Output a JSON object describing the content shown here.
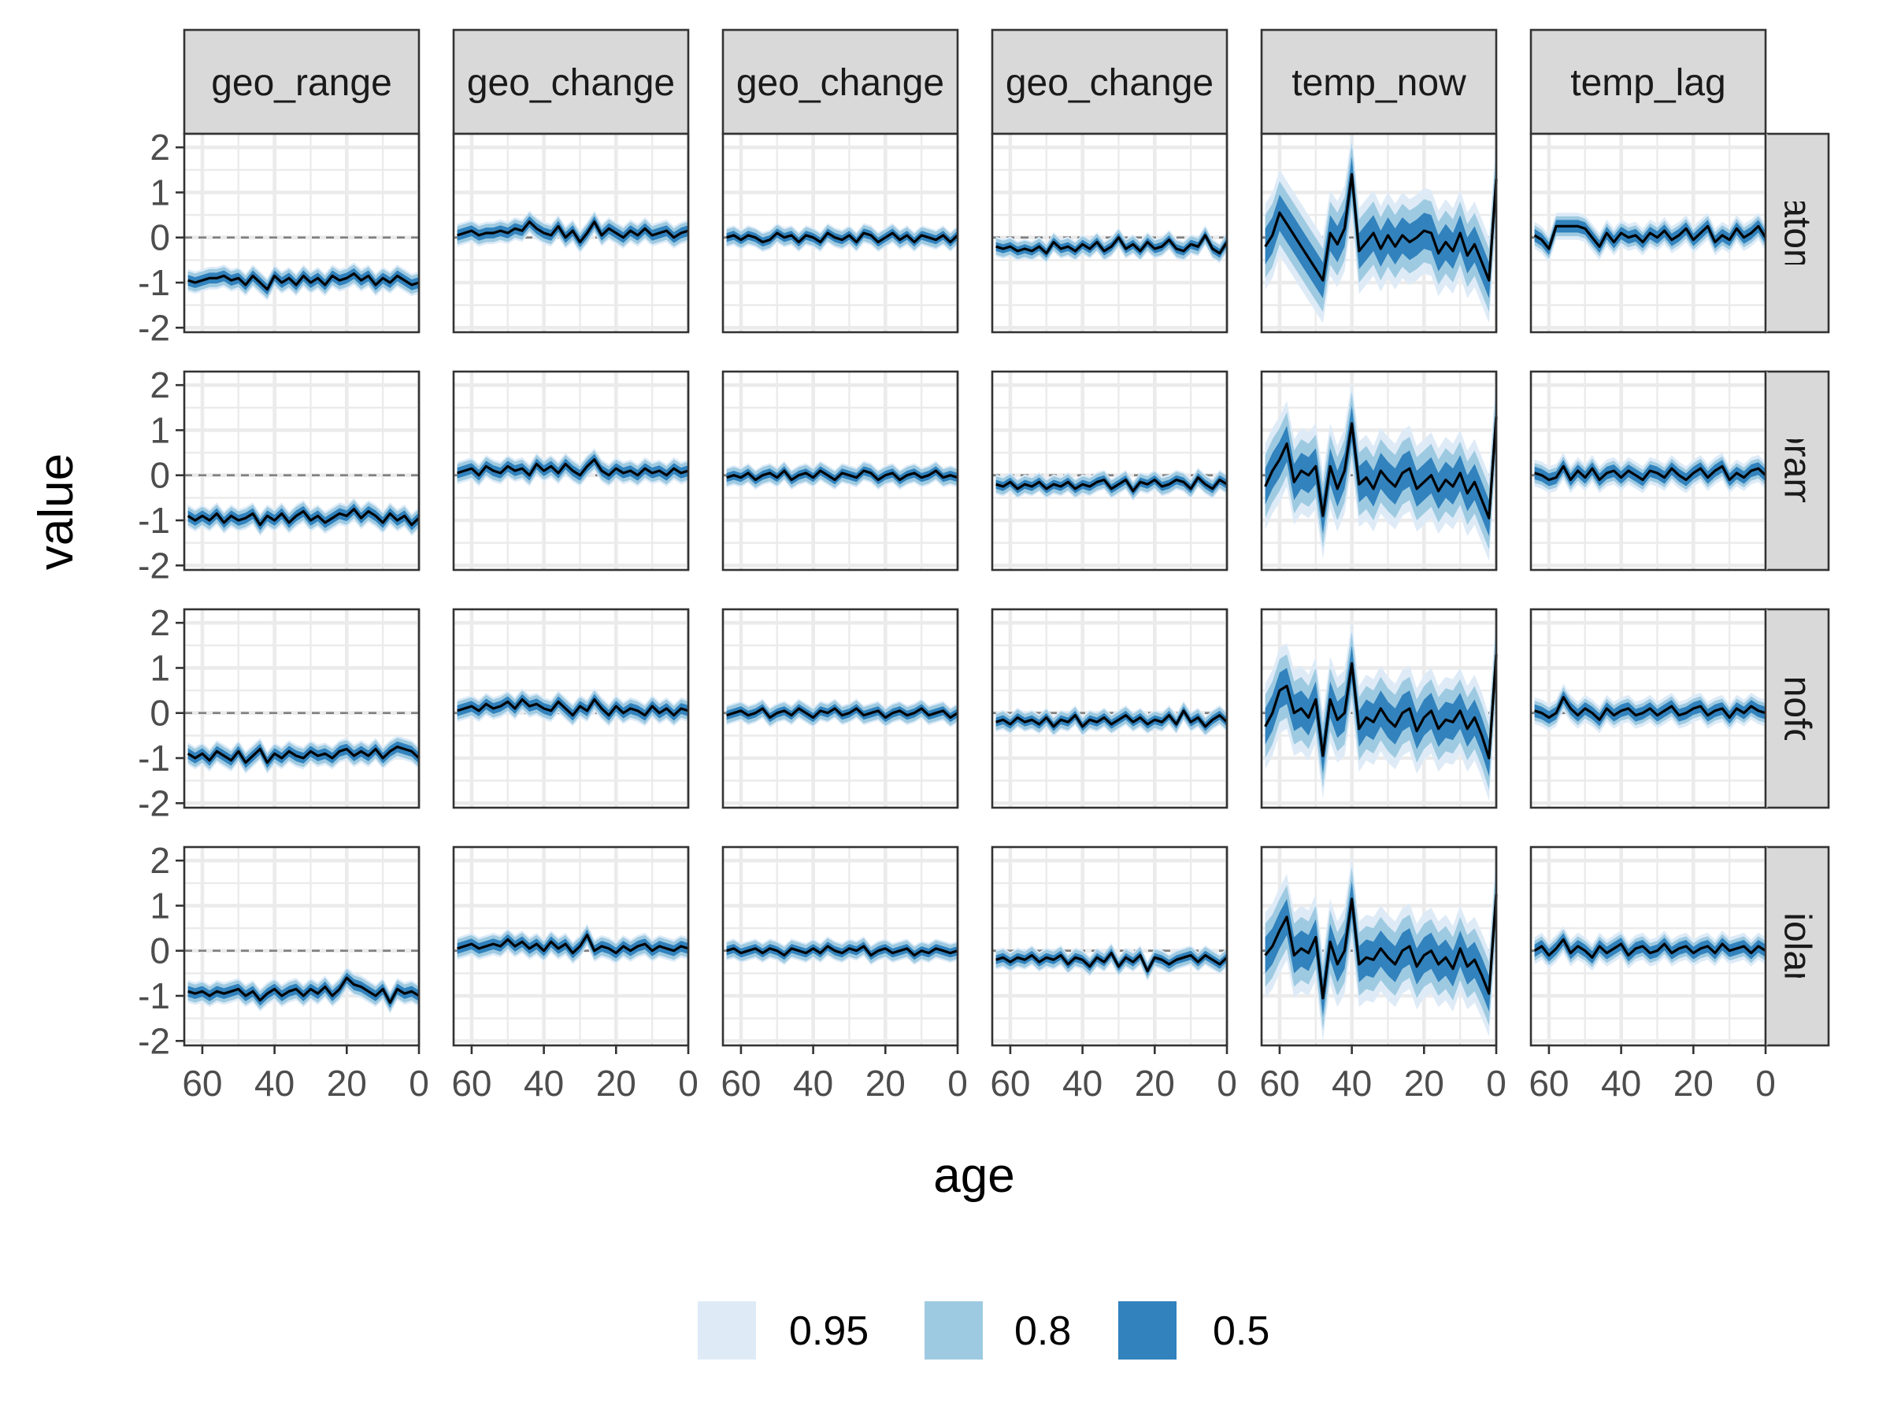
{
  "chart_data": {
    "type": "area",
    "facet_columns": [
      "geo_range",
      "geo_change",
      "geo_change",
      "geo_change",
      "temp_now",
      "temp_lag"
    ],
    "facet_rows": [
      "diatoms",
      "forams",
      "nannofossil",
      "radiolarian"
    ],
    "xlabel": "age",
    "ylabel": "value",
    "x_reversed": true,
    "xlim": [
      65,
      0
    ],
    "ylim": [
      -2.1,
      2.3
    ],
    "x_ticks": [
      60,
      40,
      20,
      0
    ],
    "y_ticks": [
      2,
      1,
      0,
      -1,
      -2
    ],
    "grid": true,
    "zero_reference_line": "dashed",
    "x": [
      64,
      62,
      60,
      58,
      56,
      54,
      52,
      50,
      48,
      46,
      44,
      42,
      40,
      38,
      36,
      34,
      32,
      30,
      28,
      26,
      24,
      22,
      20,
      18,
      16,
      14,
      12,
      10,
      8,
      6,
      4,
      2,
      0
    ],
    "legend": {
      "position": "bottom",
      "entries": [
        {
          "label": "0.95",
          "color": "#deebf7"
        },
        {
          "label": "0.8",
          "color": "#9ecae1"
        },
        {
          "label": "0.5",
          "color": "#3182bd"
        }
      ]
    },
    "line_color": "#000000",
    "panels": [
      {
        "row": 0,
        "col": 0,
        "width": [
          0.25,
          0.2,
          0.12
        ],
        "mean": [
          -0.95,
          -1.0,
          -0.95,
          -0.9,
          -0.9,
          -0.85,
          -0.95,
          -0.9,
          -1.05,
          -0.85,
          -1.0,
          -1.15,
          -0.85,
          -1.0,
          -0.9,
          -1.05,
          -0.85,
          -1.0,
          -0.9,
          -1.05,
          -0.85,
          -0.95,
          -0.9,
          -0.8,
          -0.95,
          -0.85,
          -1.05,
          -0.9,
          -1.0,
          -0.85,
          -0.95,
          -1.05,
          -1.0
        ]
      },
      {
        "row": 0,
        "col": 1,
        "width": [
          0.25,
          0.2,
          0.12
        ],
        "mean": [
          0.05,
          0.1,
          0.15,
          0.05,
          0.1,
          0.1,
          0.15,
          0.1,
          0.2,
          0.15,
          0.35,
          0.2,
          0.1,
          0.05,
          0.25,
          0.0,
          0.15,
          -0.1,
          0.1,
          0.35,
          0.05,
          0.2,
          0.1,
          0.0,
          0.15,
          0.05,
          0.2,
          0.05,
          0.1,
          0.15,
          0.0,
          0.1,
          0.15
        ]
      },
      {
        "row": 0,
        "col": 2,
        "width": [
          0.22,
          0.18,
          0.1
        ],
        "mean": [
          0.0,
          0.05,
          -0.05,
          0.05,
          0.0,
          -0.1,
          -0.05,
          0.1,
          0.0,
          0.05,
          -0.1,
          0.05,
          0.0,
          -0.1,
          0.1,
          0.0,
          -0.05,
          0.05,
          -0.1,
          0.1,
          0.05,
          -0.1,
          0.0,
          0.1,
          -0.05,
          0.05,
          -0.1,
          0.05,
          0.0,
          -0.05,
          0.05,
          -0.1,
          0.05
        ]
      },
      {
        "row": 0,
        "col": 3,
        "width": [
          0.22,
          0.18,
          0.1
        ],
        "mean": [
          -0.2,
          -0.25,
          -0.2,
          -0.3,
          -0.25,
          -0.3,
          -0.2,
          -0.35,
          -0.1,
          -0.25,
          -0.2,
          -0.3,
          -0.15,
          -0.25,
          -0.1,
          -0.3,
          -0.2,
          0.0,
          -0.25,
          -0.15,
          -0.3,
          -0.1,
          -0.25,
          -0.2,
          -0.05,
          -0.25,
          -0.3,
          -0.15,
          -0.2,
          0.05,
          -0.25,
          -0.35,
          -0.1
        ]
      },
      {
        "row": 0,
        "col": 4,
        "width": [
          0.95,
          0.7,
          0.4
        ],
        "mean": [
          -0.2,
          0.05,
          0.55,
          0.3,
          0.05,
          -0.2,
          -0.45,
          -0.7,
          -0.95,
          0.1,
          -0.15,
          0.2,
          1.4,
          -0.3,
          -0.1,
          0.1,
          -0.25,
          0.05,
          -0.2,
          0.05,
          -0.1,
          0.0,
          0.15,
          0.1,
          -0.35,
          -0.1,
          -0.3,
          0.1,
          -0.4,
          -0.15,
          -0.55,
          -0.95,
          1.3
        ]
      },
      {
        "row": 0,
        "col": 5,
        "width": [
          0.3,
          0.22,
          0.14
        ],
        "mean": [
          0.05,
          -0.05,
          -0.25,
          0.25,
          0.25,
          0.25,
          0.25,
          0.2,
          0.0,
          -0.2,
          0.1,
          -0.1,
          0.1,
          0.0,
          0.05,
          -0.1,
          0.1,
          0.0,
          0.15,
          -0.05,
          0.05,
          0.2,
          -0.05,
          0.1,
          0.25,
          -0.1,
          0.05,
          -0.05,
          0.2,
          0.0,
          0.1,
          0.25,
          0.0
        ]
      },
      {
        "row": 1,
        "col": 0,
        "width": [
          0.25,
          0.2,
          0.12
        ],
        "mean": [
          -0.9,
          -1.0,
          -0.9,
          -1.0,
          -0.85,
          -1.05,
          -0.9,
          -1.0,
          -0.95,
          -0.85,
          -1.1,
          -0.9,
          -1.0,
          -0.85,
          -1.05,
          -0.9,
          -0.8,
          -1.0,
          -0.9,
          -1.05,
          -0.95,
          -0.85,
          -0.9,
          -0.75,
          -0.95,
          -0.8,
          -0.9,
          -1.05,
          -0.85,
          -1.0,
          -0.9,
          -1.1,
          -0.95
        ]
      },
      {
        "row": 1,
        "col": 1,
        "width": [
          0.25,
          0.2,
          0.12
        ],
        "mean": [
          0.05,
          0.1,
          0.15,
          0.0,
          0.2,
          0.1,
          0.05,
          0.2,
          0.1,
          0.15,
          0.0,
          0.25,
          0.1,
          0.2,
          0.05,
          0.25,
          0.1,
          0.0,
          0.2,
          0.35,
          0.1,
          0.0,
          0.15,
          0.05,
          0.1,
          0.0,
          0.15,
          0.05,
          0.1,
          0.0,
          0.15,
          0.05,
          0.1
        ]
      },
      {
        "row": 1,
        "col": 2,
        "width": [
          0.22,
          0.18,
          0.1
        ],
        "mean": [
          -0.05,
          0.0,
          -0.05,
          0.05,
          -0.1,
          0.0,
          0.05,
          -0.05,
          0.1,
          -0.1,
          0.0,
          0.05,
          -0.05,
          0.1,
          0.0,
          -0.1,
          0.05,
          0.0,
          -0.05,
          0.1,
          0.05,
          -0.1,
          0.0,
          0.05,
          -0.1,
          0.0,
          0.05,
          -0.05,
          0.0,
          0.1,
          -0.05,
          0.0,
          -0.05
        ]
      },
      {
        "row": 1,
        "col": 3,
        "width": [
          0.22,
          0.18,
          0.1
        ],
        "mean": [
          -0.2,
          -0.25,
          -0.15,
          -0.3,
          -0.2,
          -0.25,
          -0.15,
          -0.3,
          -0.2,
          -0.25,
          -0.15,
          -0.3,
          -0.2,
          -0.25,
          -0.15,
          -0.1,
          -0.3,
          -0.2,
          -0.1,
          -0.35,
          -0.15,
          -0.2,
          -0.1,
          -0.25,
          -0.2,
          -0.1,
          -0.15,
          -0.3,
          -0.05,
          -0.2,
          -0.3,
          -0.1,
          -0.2
        ]
      },
      {
        "row": 1,
        "col": 4,
        "width": [
          0.95,
          0.7,
          0.4
        ],
        "mean": [
          -0.25,
          0.1,
          0.35,
          0.7,
          -0.15,
          0.1,
          0.0,
          0.2,
          -0.9,
          0.2,
          -0.3,
          0.1,
          1.15,
          -0.2,
          -0.05,
          -0.3,
          0.1,
          -0.1,
          -0.25,
          0.05,
          0.15,
          -0.3,
          -0.15,
          0.0,
          -0.35,
          -0.1,
          -0.25,
          0.05,
          -0.4,
          -0.15,
          -0.55,
          -0.95,
          1.3
        ]
      },
      {
        "row": 1,
        "col": 5,
        "width": [
          0.3,
          0.22,
          0.14
        ],
        "mean": [
          0.05,
          0.0,
          -0.1,
          -0.05,
          0.2,
          -0.1,
          0.1,
          -0.05,
          0.15,
          -0.1,
          0.05,
          0.1,
          -0.05,
          0.1,
          0.0,
          -0.1,
          0.1,
          0.05,
          -0.05,
          0.15,
          0.0,
          -0.1,
          0.05,
          0.15,
          -0.05,
          0.1,
          0.2,
          -0.1,
          0.05,
          -0.05,
          0.1,
          0.15,
          0.0
        ]
      },
      {
        "row": 2,
        "col": 0,
        "width": [
          0.25,
          0.2,
          0.12
        ],
        "mean": [
          -0.9,
          -1.0,
          -0.9,
          -1.05,
          -0.85,
          -0.95,
          -1.05,
          -0.85,
          -1.1,
          -0.95,
          -0.8,
          -1.1,
          -0.9,
          -1.0,
          -0.85,
          -0.95,
          -1.0,
          -0.85,
          -0.95,
          -0.9,
          -1.0,
          -0.85,
          -0.8,
          -0.95,
          -0.85,
          -0.95,
          -0.8,
          -1.0,
          -0.85,
          -0.75,
          -0.8,
          -0.85,
          -1.0
        ]
      },
      {
        "row": 2,
        "col": 1,
        "width": [
          0.25,
          0.2,
          0.12
        ],
        "mean": [
          0.05,
          0.1,
          0.15,
          0.05,
          0.2,
          0.1,
          0.15,
          0.25,
          0.1,
          0.3,
          0.15,
          0.2,
          0.1,
          0.05,
          0.25,
          0.1,
          -0.05,
          0.15,
          0.05,
          0.3,
          0.1,
          -0.05,
          0.15,
          0.0,
          0.1,
          0.05,
          -0.05,
          0.15,
          0.0,
          0.1,
          -0.05,
          0.1,
          0.05
        ]
      },
      {
        "row": 2,
        "col": 2,
        "width": [
          0.22,
          0.18,
          0.1
        ],
        "mean": [
          -0.05,
          0.0,
          0.05,
          -0.05,
          0.0,
          0.1,
          -0.1,
          0.0,
          0.05,
          -0.05,
          0.1,
          0.0,
          -0.1,
          0.05,
          0.0,
          0.1,
          -0.05,
          0.0,
          0.1,
          -0.05,
          0.0,
          0.05,
          -0.1,
          0.0,
          0.05,
          -0.05,
          0.0,
          0.1,
          -0.05,
          0.0,
          0.05,
          -0.1,
          0.0
        ]
      },
      {
        "row": 2,
        "col": 3,
        "width": [
          0.22,
          0.18,
          0.1
        ],
        "mean": [
          -0.2,
          -0.15,
          -0.25,
          -0.1,
          -0.2,
          -0.15,
          -0.25,
          -0.1,
          -0.3,
          -0.15,
          -0.2,
          -0.05,
          -0.3,
          -0.15,
          -0.2,
          -0.1,
          -0.25,
          -0.15,
          -0.05,
          -0.2,
          -0.1,
          -0.25,
          -0.15,
          -0.2,
          -0.05,
          -0.25,
          0.05,
          -0.2,
          -0.1,
          -0.3,
          -0.15,
          -0.05,
          -0.2
        ]
      },
      {
        "row": 2,
        "col": 4,
        "width": [
          0.95,
          0.7,
          0.4
        ],
        "mean": [
          -0.3,
          0.0,
          0.5,
          0.6,
          0.0,
          0.1,
          -0.1,
          0.3,
          -0.95,
          0.3,
          -0.15,
          0.0,
          1.1,
          -0.35,
          -0.1,
          -0.2,
          0.1,
          -0.15,
          -0.3,
          0.0,
          0.1,
          -0.4,
          -0.1,
          0.05,
          -0.35,
          -0.15,
          -0.2,
          0.05,
          -0.35,
          -0.1,
          -0.5,
          -1.0,
          1.3
        ]
      },
      {
        "row": 2,
        "col": 5,
        "width": [
          0.3,
          0.22,
          0.14
        ],
        "mean": [
          0.05,
          0.0,
          -0.1,
          0.0,
          0.35,
          0.1,
          -0.05,
          0.1,
          0.0,
          -0.15,
          0.1,
          -0.05,
          0.05,
          0.1,
          -0.05,
          0.0,
          0.1,
          -0.05,
          0.05,
          0.15,
          -0.05,
          0.0,
          0.1,
          0.15,
          -0.05,
          0.05,
          0.1,
          -0.1,
          0.1,
          0.0,
          0.15,
          0.05,
          0.0
        ]
      },
      {
        "row": 3,
        "col": 0,
        "width": [
          0.25,
          0.2,
          0.12
        ],
        "mean": [
          -0.9,
          -0.95,
          -0.9,
          -1.0,
          -0.9,
          -0.95,
          -0.9,
          -0.85,
          -1.0,
          -0.9,
          -1.1,
          -0.95,
          -0.85,
          -1.0,
          -0.9,
          -0.85,
          -1.0,
          -0.85,
          -0.95,
          -0.8,
          -1.0,
          -0.85,
          -0.6,
          -0.75,
          -0.8,
          -0.9,
          -1.0,
          -0.85,
          -1.15,
          -0.85,
          -0.95,
          -0.9,
          -1.0
        ]
      },
      {
        "row": 3,
        "col": 1,
        "width": [
          0.25,
          0.2,
          0.12
        ],
        "mean": [
          0.05,
          0.1,
          0.15,
          0.05,
          0.1,
          0.15,
          0.1,
          0.25,
          0.1,
          0.2,
          0.05,
          0.15,
          0.0,
          0.2,
          0.05,
          0.15,
          -0.05,
          0.1,
          0.35,
          0.0,
          0.1,
          0.05,
          -0.05,
          0.1,
          0.0,
          0.1,
          0.15,
          0.0,
          0.1,
          0.05,
          0.0,
          0.1,
          0.05
        ]
      },
      {
        "row": 3,
        "col": 2,
        "width": [
          0.22,
          0.18,
          0.1
        ],
        "mean": [
          0.0,
          0.05,
          -0.05,
          0.0,
          0.05,
          -0.05,
          0.05,
          0.0,
          -0.1,
          0.05,
          0.0,
          -0.05,
          0.05,
          -0.05,
          0.1,
          0.0,
          -0.05,
          0.05,
          0.0,
          0.1,
          -0.1,
          0.0,
          0.05,
          -0.05,
          0.0,
          0.05,
          -0.1,
          0.0,
          -0.05,
          0.05,
          0.0,
          -0.05,
          0.0
        ]
      },
      {
        "row": 3,
        "col": 3,
        "width": [
          0.22,
          0.18,
          0.1
        ],
        "mean": [
          -0.2,
          -0.15,
          -0.25,
          -0.15,
          -0.2,
          -0.1,
          -0.25,
          -0.15,
          -0.2,
          -0.1,
          -0.3,
          -0.15,
          -0.2,
          -0.35,
          -0.15,
          -0.25,
          -0.05,
          -0.35,
          -0.15,
          -0.25,
          -0.1,
          -0.45,
          -0.15,
          -0.2,
          -0.3,
          -0.2,
          -0.15,
          -0.1,
          -0.25,
          -0.1,
          -0.2,
          -0.3,
          -0.15
        ]
      },
      {
        "row": 3,
        "col": 4,
        "width": [
          0.95,
          0.7,
          0.4
        ],
        "mean": [
          -0.1,
          0.1,
          0.45,
          0.75,
          -0.1,
          0.05,
          -0.05,
          0.3,
          -1.05,
          0.2,
          -0.3,
          0.0,
          1.15,
          -0.3,
          -0.15,
          -0.2,
          0.05,
          -0.15,
          -0.3,
          0.0,
          0.1,
          -0.35,
          -0.1,
          0.0,
          -0.3,
          -0.15,
          -0.4,
          0.05,
          -0.35,
          -0.2,
          -0.55,
          -0.95,
          1.25
        ]
      },
      {
        "row": 3,
        "col": 5,
        "width": [
          0.3,
          0.22,
          0.14
        ],
        "mean": [
          0.0,
          0.1,
          -0.1,
          0.05,
          0.25,
          -0.05,
          0.1,
          0.0,
          -0.15,
          0.1,
          -0.05,
          0.05,
          0.15,
          -0.1,
          0.05,
          0.1,
          -0.05,
          0.0,
          0.15,
          -0.05,
          0.05,
          0.1,
          -0.05,
          0.05,
          0.1,
          -0.05,
          0.15,
          0.0,
          0.05,
          0.1,
          -0.05,
          0.1,
          0.0
        ]
      }
    ]
  }
}
